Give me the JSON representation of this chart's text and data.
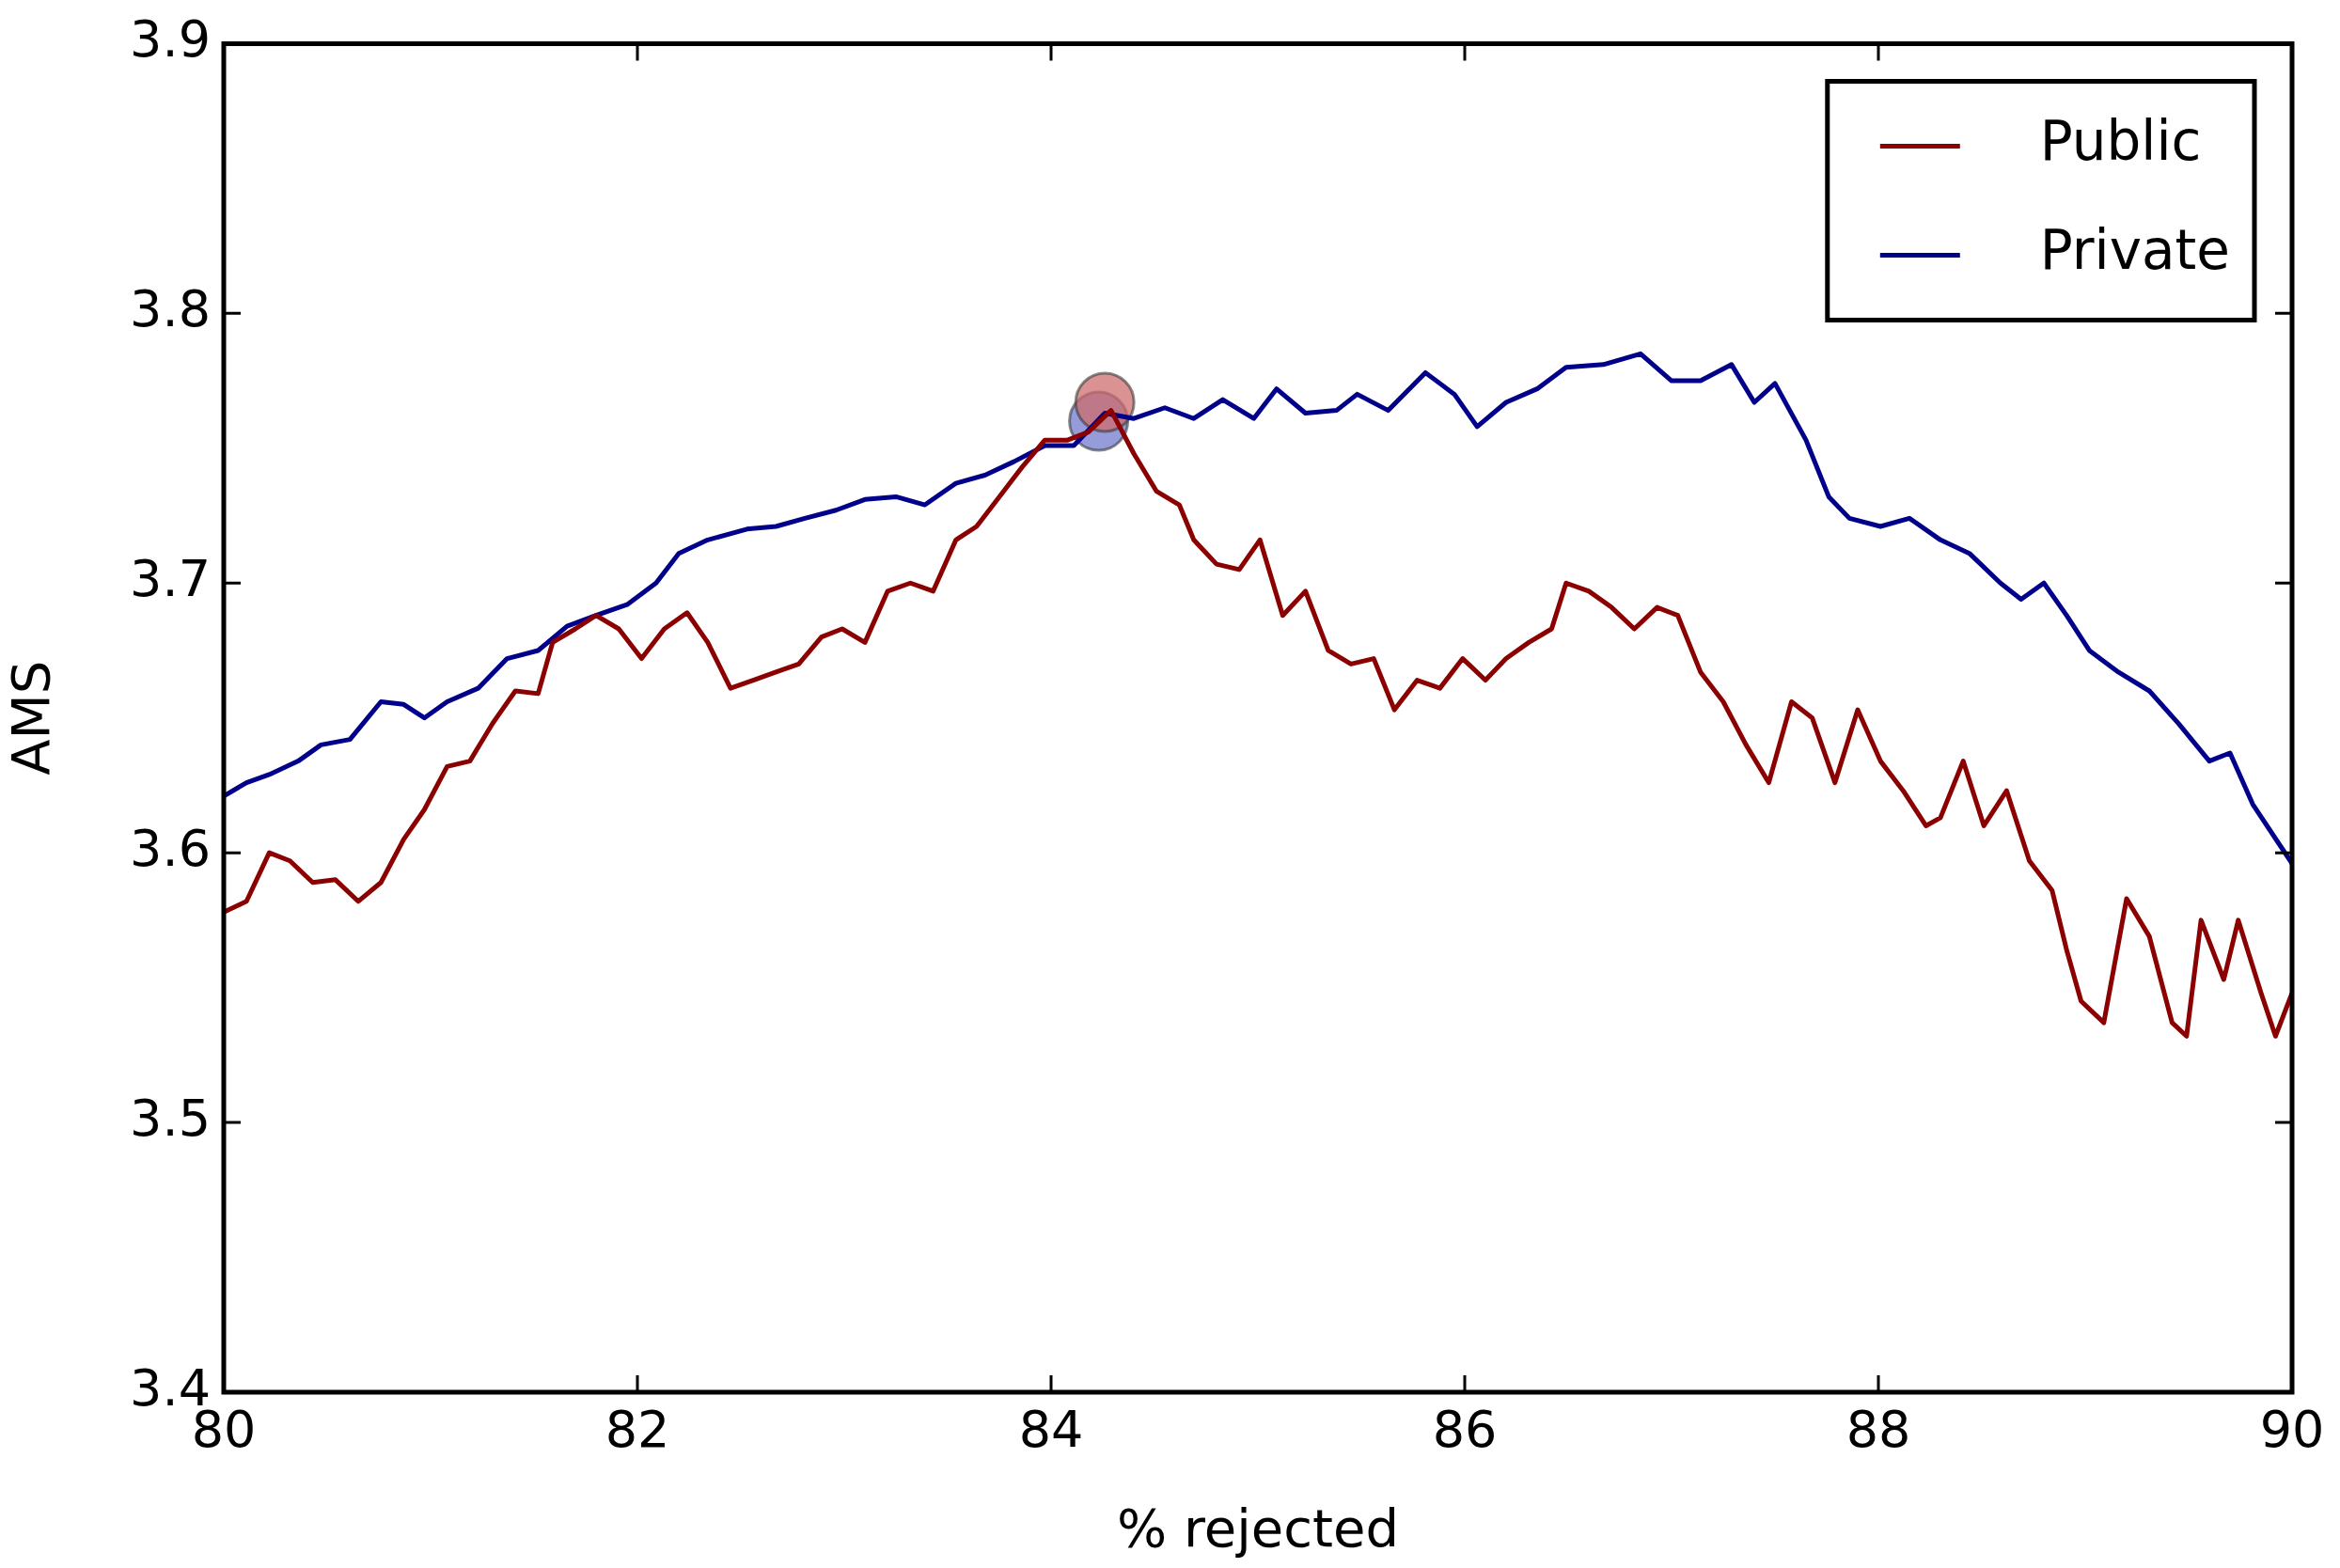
{
  "chart_data": {
    "type": "line",
    "xlabel": "% rejected",
    "ylabel": "AMS",
    "xlim": [
      80,
      90
    ],
    "xticks": [
      80,
      82,
      84,
      86,
      88,
      90
    ],
    "ylim": [
      3.4,
      3.9
    ],
    "yticks": [
      3.4,
      3.5,
      3.6,
      3.7,
      3.8,
      3.9
    ],
    "legend": "top right",
    "grid": false,
    "marker": "none",
    "line_style": "solid",
    "series": [
      {
        "name": "Public",
        "color": "#8b0000",
        "x": [
          80,
          80.11,
          80.22,
          80.32,
          80.43,
          80.54,
          80.65,
          80.76,
          80.87,
          80.97,
          81.08,
          81.19,
          81.3,
          81.41,
          81.52,
          81.59,
          81.7,
          81.8,
          81.91,
          82.02,
          82.13,
          82.24,
          82.34,
          82.45,
          82.56,
          82.67,
          82.78,
          82.89,
          82.99,
          83.1,
          83.21,
          83.32,
          83.43,
          83.54,
          83.64,
          83.75,
          83.86,
          83.97,
          84.08,
          84.18,
          84.29,
          84.4,
          84.51,
          84.62,
          84.69,
          84.8,
          84.91,
          85.01,
          85.12,
          85.23,
          85.34,
          85.45,
          85.56,
          85.66,
          85.77,
          85.88,
          85.99,
          86.1,
          86.2,
          86.31,
          86.42,
          86.49,
          86.6,
          86.71,
          86.82,
          86.93,
          87.03,
          87.14,
          87.25,
          87.36,
          87.47,
          87.58,
          87.68,
          87.79,
          87.9,
          88.01,
          88.12,
          88.23,
          88.3,
          88.41,
          88.51,
          88.62,
          88.73,
          88.84,
          88.91,
          88.98,
          89.09,
          89.2,
          89.31,
          89.42,
          89.49,
          89.56,
          89.67,
          89.74,
          89.85,
          89.92,
          90
        ],
        "values": [
          3.578,
          3.582,
          3.6,
          3.597,
          3.589,
          3.59,
          3.582,
          3.589,
          3.605,
          3.616,
          3.632,
          3.634,
          3.648,
          3.66,
          3.659,
          3.678,
          3.683,
          3.688,
          3.683,
          3.672,
          3.683,
          3.689,
          3.678,
          3.661,
          3.664,
          3.667,
          3.67,
          3.68,
          3.683,
          3.678,
          3.697,
          3.7,
          3.697,
          3.716,
          3.721,
          3.732,
          3.743,
          3.753,
          3.753,
          3.756,
          3.764,
          3.748,
          3.734,
          3.729,
          3.716,
          3.707,
          3.705,
          3.716,
          3.688,
          3.697,
          3.675,
          3.67,
          3.672,
          3.653,
          3.664,
          3.661,
          3.672,
          3.664,
          3.672,
          3.678,
          3.683,
          3.7,
          3.697,
          3.691,
          3.683,
          3.691,
          3.688,
          3.667,
          3.656,
          3.64,
          3.626,
          3.656,
          3.65,
          3.626,
          3.653,
          3.634,
          3.623,
          3.61,
          3.613,
          3.634,
          3.61,
          3.623,
          3.597,
          3.586,
          3.564,
          3.545,
          3.537,
          3.583,
          3.569,
          3.537,
          3.532,
          3.575,
          3.553,
          3.575,
          3.548,
          3.532,
          3.548
        ]
      },
      {
        "name": "Private",
        "color": "#00008b",
        "x": [
          80,
          80.11,
          80.22,
          80.36,
          80.47,
          80.61,
          80.76,
          80.87,
          80.97,
          81.08,
          81.23,
          81.37,
          81.52,
          81.66,
          81.8,
          81.95,
          82.09,
          82.2,
          82.34,
          82.53,
          82.67,
          82.81,
          82.96,
          83.1,
          83.25,
          83.39,
          83.54,
          83.68,
          83.82,
          83.97,
          84.11,
          84.26,
          84.4,
          84.55,
          84.69,
          84.83,
          84.98,
          85.09,
          85.23,
          85.38,
          85.48,
          85.63,
          85.81,
          85.95,
          86.06,
          86.2,
          86.35,
          86.49,
          86.67,
          86.85,
          87,
          87.14,
          87.29,
          87.4,
          87.5,
          87.65,
          87.76,
          87.86,
          88.01,
          88.15,
          88.3,
          88.44,
          88.59,
          88.69,
          88.8,
          88.91,
          89.02,
          89.16,
          89.31,
          89.45,
          89.6,
          89.7,
          89.81,
          90
        ],
        "values": [
          3.621,
          3.626,
          3.629,
          3.634,
          3.64,
          3.642,
          3.656,
          3.655,
          3.65,
          3.656,
          3.661,
          3.672,
          3.675,
          3.684,
          3.688,
          3.692,
          3.7,
          3.711,
          3.716,
          3.72,
          3.721,
          3.724,
          3.727,
          3.731,
          3.732,
          3.729,
          3.737,
          3.74,
          3.745,
          3.751,
          3.751,
          3.763,
          3.761,
          3.765,
          3.761,
          3.768,
          3.761,
          3.772,
          3.763,
          3.764,
          3.77,
          3.764,
          3.778,
          3.77,
          3.758,
          3.767,
          3.772,
          3.78,
          3.781,
          3.785,
          3.775,
          3.775,
          3.781,
          3.767,
          3.774,
          3.753,
          3.732,
          3.724,
          3.721,
          3.724,
          3.716,
          3.711,
          3.7,
          3.694,
          3.7,
          3.688,
          3.675,
          3.667,
          3.66,
          3.648,
          3.634,
          3.637,
          3.618,
          3.596
        ]
      },
      {
        "type": "scatter",
        "marker": "circle",
        "color": "#cd6a6a",
        "x": [
          84.26
        ],
        "values": [
          3.767
        ]
      },
      {
        "type": "scatter",
        "marker": "circle",
        "color": "#7078cc",
        "x": [
          84.23
        ],
        "values": [
          3.76
        ]
      }
    ]
  }
}
